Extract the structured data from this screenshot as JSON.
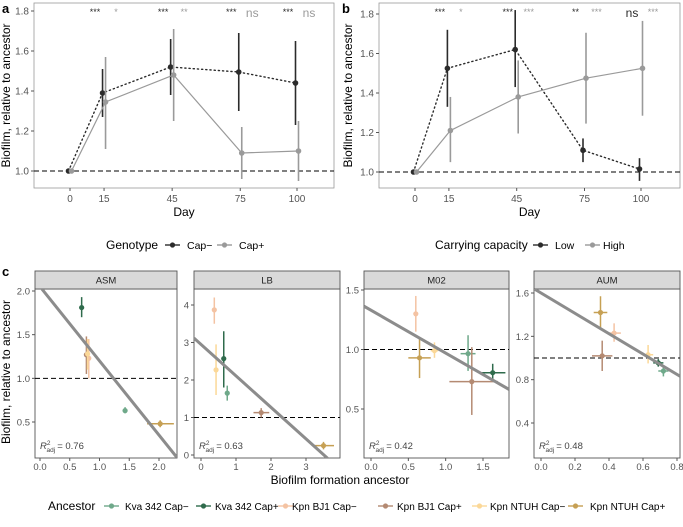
{
  "chart_data": [
    {
      "panel": "a",
      "type": "line",
      "xlabel": "Day",
      "ylabel": "Biofilm, relative to ancestor",
      "x_ticks": [
        0,
        15,
        45,
        75,
        100
      ],
      "y_ticks": [
        1.0,
        1.2,
        1.4,
        1.6,
        1.8
      ],
      "reference_line": 1.0,
      "legend": {
        "title": "Genotype",
        "position": "bottom"
      },
      "series": [
        {
          "name": "Cap−",
          "color": "#2b2b2b",
          "line": "dotted",
          "points": [
            {
              "x": 0,
              "y": 1.0,
              "lo": 1.0,
              "hi": 1.0
            },
            {
              "x": 15,
              "y": 1.39,
              "lo": 1.27,
              "hi": 1.51
            },
            {
              "x": 45,
              "y": 1.52,
              "lo": 1.38,
              "hi": 1.66
            },
            {
              "x": 75,
              "y": 1.495,
              "lo": 1.3,
              "hi": 1.69
            },
            {
              "x": 100,
              "y": 1.44,
              "lo": 1.23,
              "hi": 1.65
            }
          ],
          "significance": [
            "***",
            "***",
            "***",
            "***"
          ]
        },
        {
          "name": "Cap+",
          "color": "#9a9a9a",
          "line": "solid",
          "points": [
            {
              "x": 0,
              "y": 1.0,
              "lo": 1.0,
              "hi": 1.0
            },
            {
              "x": 15,
              "y": 1.345,
              "lo": 1.11,
              "hi": 1.57
            },
            {
              "x": 45,
              "y": 1.48,
              "lo": 1.25,
              "hi": 1.71
            },
            {
              "x": 75,
              "y": 1.09,
              "lo": 0.96,
              "hi": 1.22
            },
            {
              "x": 100,
              "y": 1.1,
              "lo": 0.95,
              "hi": 1.25
            }
          ],
          "significance": [
            "*",
            "**",
            "ns",
            "ns"
          ]
        }
      ]
    },
    {
      "panel": "b",
      "type": "line",
      "xlabel": "Day",
      "ylabel": "Biofilm, relative to ancestor",
      "x_ticks": [
        0,
        15,
        45,
        75,
        100
      ],
      "y_ticks": [
        1.0,
        1.2,
        1.4,
        1.6,
        1.8
      ],
      "reference_line": 1.0,
      "legend": {
        "title": "Carrying capacity",
        "position": "bottom"
      },
      "series": [
        {
          "name": "Low",
          "color": "#2b2b2b",
          "line": "dotted",
          "points": [
            {
              "x": 0,
              "y": 1.0,
              "lo": 1.0,
              "hi": 1.0
            },
            {
              "x": 15,
              "y": 1.525,
              "lo": 1.33,
              "hi": 1.72
            },
            {
              "x": 45,
              "y": 1.62,
              "lo": 1.43,
              "hi": 1.82
            },
            {
              "x": 75,
              "y": 1.11,
              "lo": 1.05,
              "hi": 1.17
            },
            {
              "x": 100,
              "y": 1.015,
              "lo": 0.955,
              "hi": 1.07
            }
          ],
          "significance": [
            "***",
            "***",
            "**",
            "ns"
          ]
        },
        {
          "name": "High",
          "color": "#9a9a9a",
          "line": "solid",
          "points": [
            {
              "x": 0,
              "y": 1.0,
              "lo": 1.0,
              "hi": 1.0
            },
            {
              "x": 15,
              "y": 1.21,
              "lo": 1.05,
              "hi": 1.38
            },
            {
              "x": 45,
              "y": 1.38,
              "lo": 1.195,
              "hi": 1.565
            },
            {
              "x": 75,
              "y": 1.475,
              "lo": 1.245,
              "hi": 1.705
            },
            {
              "x": 100,
              "y": 1.525,
              "lo": 1.285,
              "hi": 1.765
            }
          ],
          "significance": [
            "*",
            "***",
            "***",
            "***"
          ]
        }
      ]
    },
    {
      "panel": "c",
      "type": "scatter",
      "xlabel": "Biofilm formation ancestor",
      "ylabel": "Biofilm, relative to ancestor",
      "reference_line": 1.0,
      "legend": {
        "title": "Ancestor",
        "position": "bottom"
      },
      "groups": [
        {
          "name": "Kva 342 Cap−",
          "color": "#6fa98a"
        },
        {
          "name": "Kva 342 Cap+",
          "color": "#2f6b4c"
        },
        {
          "name": "Kpn BJ1 Cap−",
          "color": "#f4c3a3"
        },
        {
          "name": "Kpn BJ1 Cap+",
          "color": "#b48a72"
        },
        {
          "name": "Kpn NTUH Cap−",
          "color": "#fbd898"
        },
        {
          "name": "Kpn NTUH Cap+",
          "color": "#c6a054"
        }
      ],
      "facets": [
        {
          "title": "ASM",
          "r2_label": "= 0.76",
          "x_ticks": [
            "0.0",
            "0.5",
            "1.0",
            "1.5",
            "2.0"
          ],
          "y_ticks": [
            "0.5",
            "1.0",
            "1.5",
            "2.0"
          ],
          "fit": {
            "intercept": 2.05,
            "slope": -0.85
          },
          "points": [
            {
              "g": 0,
              "x": 1.43,
              "y": 0.63,
              "xlo": 1.39,
              "xhi": 1.47,
              "ylo": 0.6,
              "yhi": 0.67
            },
            {
              "g": 1,
              "x": 0.7,
              "y": 1.81,
              "xlo": 0.68,
              "xhi": 0.72,
              "ylo": 1.7,
              "yhi": 1.93
            },
            {
              "g": 2,
              "x": 0.82,
              "y": 1.23,
              "xlo": 0.79,
              "xhi": 0.85,
              "ylo": 1.0,
              "yhi": 1.45
            },
            {
              "g": 3,
              "x": 0.78,
              "y": 1.27,
              "xlo": 0.76,
              "xhi": 0.8,
              "ylo": 1.05,
              "yhi": 1.48
            },
            {
              "g": 4,
              "x": 0.8,
              "y": 1.28,
              "xlo": 0.78,
              "xhi": 0.82,
              "ylo": 1.1,
              "yhi": 1.45
            },
            {
              "g": 5,
              "x": 2.02,
              "y": 0.48,
              "xlo": 1.8,
              "xhi": 2.25,
              "ylo": 0.44,
              "yhi": 0.52
            }
          ]
        },
        {
          "title": "LB",
          "r2_label": "= 0.63",
          "x_ticks": [
            "0",
            "1",
            "2",
            "3"
          ],
          "y_ticks": [
            "0",
            "1",
            "2",
            "3",
            "4"
          ],
          "fit": {
            "intercept": 2.95,
            "slope": -0.84
          },
          "points": [
            {
              "g": 0,
              "x": 0.75,
              "y": 1.65,
              "xlo": 0.7,
              "xhi": 0.8,
              "ylo": 1.45,
              "yhi": 1.85
            },
            {
              "g": 1,
              "x": 0.65,
              "y": 2.57,
              "xlo": 0.6,
              "xhi": 0.7,
              "ylo": 1.8,
              "yhi": 3.3
            },
            {
              "g": 2,
              "x": 0.38,
              "y": 3.87,
              "xlo": 0.34,
              "xhi": 0.42,
              "ylo": 3.5,
              "yhi": 4.2
            },
            {
              "g": 3,
              "x": 1.72,
              "y": 1.13,
              "xlo": 1.5,
              "xhi": 1.95,
              "ylo": 1.0,
              "yhi": 1.25
            },
            {
              "g": 4,
              "x": 0.43,
              "y": 2.27,
              "xlo": 0.4,
              "xhi": 0.46,
              "ylo": 1.6,
              "yhi": 2.95
            },
            {
              "g": 5,
              "x": 3.5,
              "y": 0.25,
              "xlo": 3.2,
              "xhi": 3.8,
              "ylo": 0.15,
              "yhi": 0.35
            }
          ]
        },
        {
          "title": "M02",
          "r2_label": "= 0.42",
          "x_ticks": [
            "0.0",
            "0.5",
            "1.0",
            "1.5"
          ],
          "y_ticks": [
            "0.5",
            "1.0",
            "1.5"
          ],
          "fit": {
            "intercept": 1.33,
            "slope": -0.36
          },
          "points": [
            {
              "g": 0,
              "x": 1.3,
              "y": 0.965,
              "xlo": 1.2,
              "xhi": 1.4,
              "ylo": 0.82,
              "yhi": 1.12
            },
            {
              "g": 1,
              "x": 1.63,
              "y": 0.805,
              "xlo": 1.45,
              "xhi": 1.8,
              "ylo": 0.73,
              "yhi": 0.88
            },
            {
              "g": 2,
              "x": 0.6,
              "y": 1.3,
              "xlo": 0.58,
              "xhi": 0.62,
              "ylo": 1.15,
              "yhi": 1.45
            },
            {
              "g": 3,
              "x": 1.35,
              "y": 0.73,
              "xlo": 1.05,
              "xhi": 1.7,
              "ylo": 0.45,
              "yhi": 1.02
            },
            {
              "g": 4,
              "x": 0.85,
              "y": 0.99,
              "xlo": 0.8,
              "xhi": 0.9,
              "ylo": 0.93,
              "yhi": 1.06
            },
            {
              "g": 5,
              "x": 0.65,
              "y": 0.93,
              "xlo": 0.5,
              "xhi": 0.8,
              "ylo": 0.76,
              "yhi": 1.1
            }
          ]
        },
        {
          "title": "AUM",
          "r2_label": "= 0.48",
          "x_ticks": [
            "0.0",
            "0.2",
            "0.4",
            "0.6",
            "0.8"
          ],
          "y_ticks": [
            "0.4",
            "0.8",
            "1.2",
            "1.6"
          ],
          "fit": {
            "intercept": 1.6,
            "slope": -0.94
          },
          "points": [
            {
              "g": 0,
              "x": 0.72,
              "y": 0.88,
              "xlo": 0.69,
              "xhi": 0.75,
              "ylo": 0.83,
              "yhi": 0.93
            },
            {
              "g": 1,
              "x": 0.69,
              "y": 0.955,
              "xlo": 0.66,
              "xhi": 0.72,
              "ylo": 0.92,
              "yhi": 0.99
            },
            {
              "g": 2,
              "x": 0.43,
              "y": 1.23,
              "xlo": 0.39,
              "xhi": 0.47,
              "ylo": 1.15,
              "yhi": 1.32
            },
            {
              "g": 3,
              "x": 0.36,
              "y": 1.02,
              "xlo": 0.3,
              "xhi": 0.42,
              "ylo": 0.88,
              "yhi": 1.16
            },
            {
              "g": 4,
              "x": 0.63,
              "y": 1.03,
              "xlo": 0.6,
              "xhi": 0.66,
              "ylo": 0.95,
              "yhi": 1.12
            },
            {
              "g": 5,
              "x": 0.35,
              "y": 1.42,
              "xlo": 0.31,
              "xhi": 0.39,
              "ylo": 1.28,
              "yhi": 1.57
            }
          ]
        }
      ]
    }
  ],
  "panel_labels": [
    "a",
    "b",
    "c"
  ],
  "r2_symbol": "R",
  "r2_sup": "2",
  "r2_sub": "adj"
}
